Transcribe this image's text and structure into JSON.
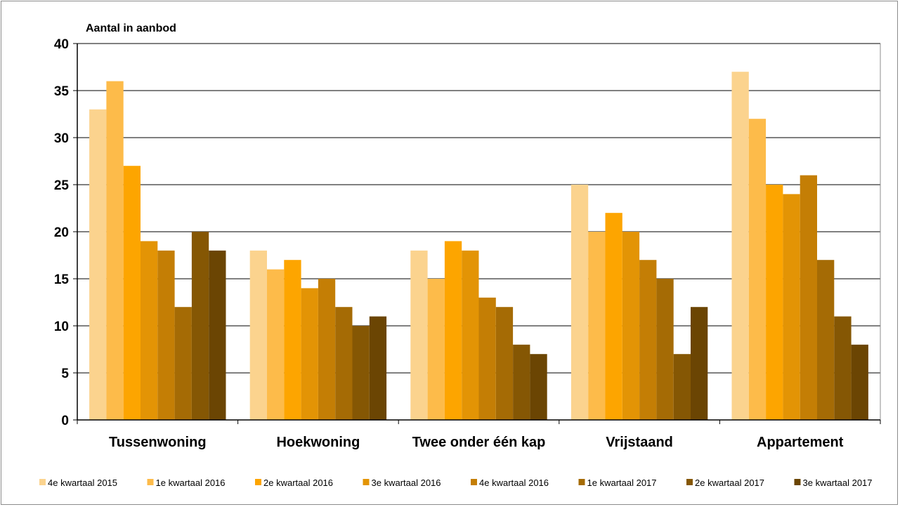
{
  "chart_data": {
    "type": "bar",
    "title": "",
    "ylabel": "Aantal in aanbod",
    "xlabel": "",
    "ylim": [
      0,
      40
    ],
    "yticks": [
      0,
      5,
      10,
      15,
      20,
      25,
      30,
      35,
      40
    ],
    "grid": true,
    "legend_position": "bottom",
    "categories": [
      "Tussenwoning",
      "Hoekwoning",
      "Twee onder één kap",
      "Vrijstaand",
      "Appartement"
    ],
    "series": [
      {
        "name": "4e kwartaal 2015",
        "color": "#FBD38E",
        "values": [
          33,
          18,
          18,
          25,
          37
        ]
      },
      {
        "name": "1e kwartaal 2016",
        "color": "#FDBB4A",
        "values": [
          36,
          16,
          15,
          20,
          32
        ]
      },
      {
        "name": "2e kwartaal 2016",
        "color": "#FDA500",
        "values": [
          27,
          17,
          19,
          22,
          25
        ]
      },
      {
        "name": "3e kwartaal 2016",
        "color": "#E39405",
        "values": [
          19,
          14,
          18,
          20,
          24
        ]
      },
      {
        "name": "4e kwartaal 2016",
        "color": "#C47E05",
        "values": [
          18,
          15,
          13,
          17,
          26
        ]
      },
      {
        "name": "1e kwartaal 2017",
        "color": "#A56B05",
        "values": [
          12,
          12,
          12,
          15,
          17
        ]
      },
      {
        "name": "2e kwartaal 2017",
        "color": "#855704",
        "values": [
          20,
          10,
          8,
          7,
          11
        ]
      },
      {
        "name": "3e kwartaal 2017",
        "color": "#6B4503",
        "values": [
          18,
          11,
          7,
          12,
          8
        ]
      }
    ]
  }
}
